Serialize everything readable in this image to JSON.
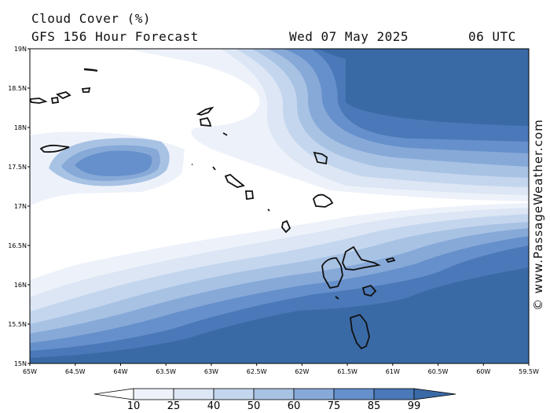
{
  "header": {
    "title": "Cloud Cover (%)",
    "subtitle": "GFS 156 Hour Forecast",
    "date": "Wed 07 May 2025",
    "time": "06 UTC"
  },
  "credit": "© www.PassageWeather.com",
  "map": {
    "lat_labels": [
      "19N",
      "18.5N",
      "18N",
      "17.5N",
      "17N",
      "16.5N",
      "16N",
      "15.5N",
      "15N"
    ],
    "lon_labels": [
      "65W",
      "64.5W",
      "64W",
      "63.5W",
      "63W",
      "62.5W",
      "62W",
      "61.5W",
      "61W",
      "60.5W",
      "60W",
      "59.5W"
    ]
  },
  "legend": {
    "levels": [
      "10",
      "25",
      "40",
      "50",
      "60",
      "75",
      "85",
      "99"
    ],
    "colors": [
      "#ffffff",
      "#edf2fa",
      "#dce6f4",
      "#c4d6ee",
      "#a8c2e4",
      "#86a9d8",
      "#6690cb",
      "#4a78b8",
      "#3a6aa6"
    ]
  }
}
